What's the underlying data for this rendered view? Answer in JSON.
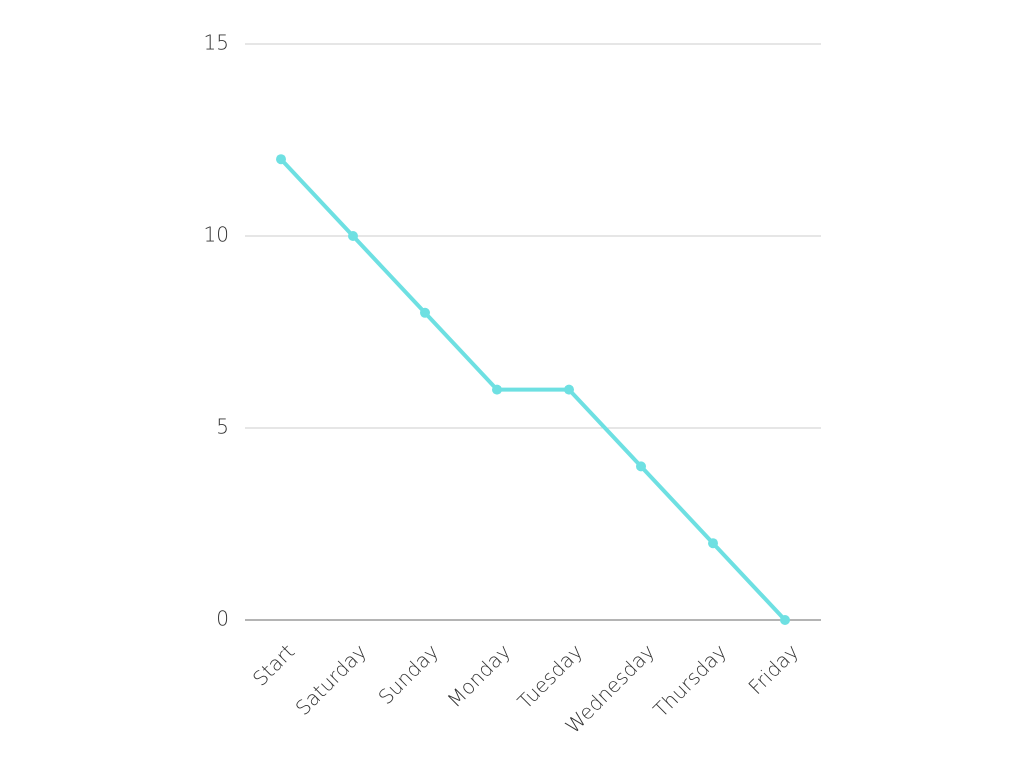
{
  "chart_data": {
    "type": "line",
    "title": "",
    "xlabel": "",
    "ylabel": "",
    "categories": [
      "Start",
      "Saturday",
      "Sunday",
      "Monday",
      "Tuesday",
      "Wednesday",
      "Thursday",
      "Friday"
    ],
    "series": [
      {
        "values": [
          12,
          10,
          8,
          6,
          6,
          4,
          2,
          0
        ]
      }
    ],
    "ylim": [
      0,
      15
    ],
    "yticks": [
      0,
      5,
      10,
      15
    ],
    "grid": true,
    "legend": "none",
    "colors": {
      "series": "#6ee0e2",
      "grid": "#cccccc",
      "axis": "#888888",
      "text": "#333333"
    }
  }
}
